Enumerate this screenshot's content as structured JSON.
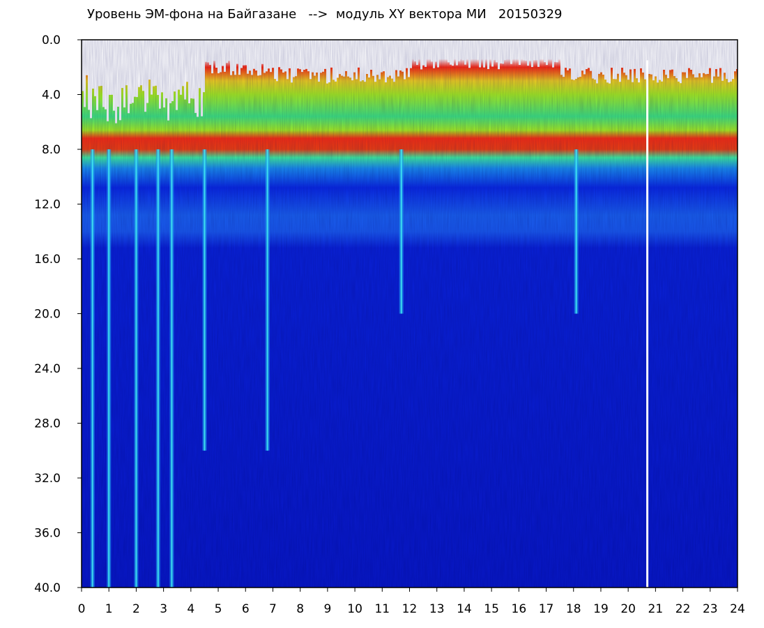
{
  "chart": {
    "title": "Уровень ЭМ-фона на Байгазане   -->  модуль XY вектора МИ   20150329"
  },
  "chart_data": {
    "type": "heatmap",
    "title": "Уровень ЭМ-фона на Байгазане   -->  модуль XY вектора МИ   20150329",
    "xlabel": "",
    "ylabel": "",
    "xlim": [
      0,
      24
    ],
    "ylim": [
      40,
      0
    ],
    "x_ticks": [
      "0",
      "1",
      "2",
      "3",
      "4",
      "5",
      "6",
      "7",
      "8",
      "9",
      "10",
      "11",
      "12",
      "13",
      "14",
      "15",
      "16",
      "17",
      "18",
      "19",
      "20",
      "21",
      "22",
      "23",
      "24"
    ],
    "y_ticks": [
      "0.0",
      "4.0",
      "8.0",
      "12.0",
      "16.0",
      "20.0",
      "24.0",
      "28.0",
      "32.0",
      "36.0",
      "40.0"
    ],
    "grid": false,
    "legend": "none",
    "colorscale": [
      "#0010c8",
      "#0a2ae6",
      "#1e7cf0",
      "#18c8e0",
      "#30e070",
      "#a8f020",
      "#f0f020",
      "#f06010",
      "#ff1010",
      "#ffffff"
    ],
    "bands": [
      {
        "from": 0.0,
        "to": 2.0,
        "level": "white"
      },
      {
        "from": 2.0,
        "to": 3.0,
        "level": "red"
      },
      {
        "from": 3.0,
        "to": 6.5,
        "level": "green-yellow"
      },
      {
        "from": 6.5,
        "to": 8.0,
        "level": "red-orange"
      },
      {
        "from": 8.0,
        "to": 9.0,
        "level": "cyan"
      },
      {
        "from": 9.0,
        "to": 15.0,
        "level": "light blue"
      },
      {
        "from": 15.0,
        "to": 40.0,
        "level": "dark blue"
      }
    ],
    "vertical_stripes_hours": [
      0.4,
      1.0,
      2.0,
      2.8,
      3.3,
      4.5,
      6.8,
      11.7,
      18.1,
      20.7
    ],
    "white_line_hour": 20.7
  }
}
